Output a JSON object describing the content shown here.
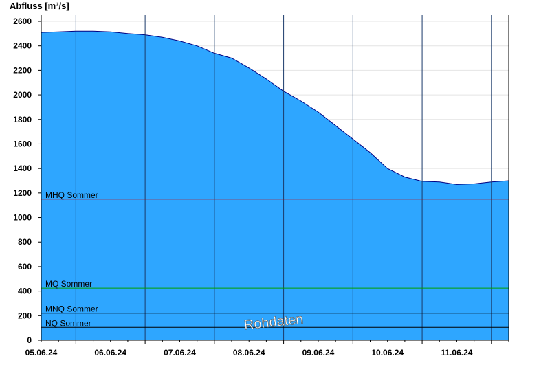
{
  "chart_data": {
    "type": "area",
    "ylabel": "Abfluss [m³/s]",
    "ylim": [
      0,
      2600
    ],
    "yticks": [
      0,
      200,
      400,
      600,
      800,
      1000,
      1200,
      1400,
      1600,
      1800,
      2000,
      2200,
      2400,
      2600
    ],
    "xlim": [
      "2024-06-04T12:00",
      "2024-06-11T06:00"
    ],
    "xtick_labels": [
      "05.06.24",
      "06.06.24",
      "07.06.24",
      "08.06.24",
      "09.06.24",
      "10.06.24",
      "11.06.24"
    ],
    "series": [
      {
        "color": "#2ea6ff",
        "x": [
          "2024-06-04T12:00",
          "2024-06-04T18:00",
          "2024-06-05T00:00",
          "2024-06-05T06:00",
          "2024-06-05T12:00",
          "2024-06-05T18:00",
          "2024-06-06T00:00",
          "2024-06-06T06:00",
          "2024-06-06T12:00",
          "2024-06-06T18:00",
          "2024-06-07T00:00",
          "2024-06-07T06:00",
          "2024-06-07T12:00",
          "2024-06-07T18:00",
          "2024-06-08T00:00",
          "2024-06-08T06:00",
          "2024-06-08T12:00",
          "2024-06-08T18:00",
          "2024-06-09T00:00",
          "2024-06-09T06:00",
          "2024-06-09T12:00",
          "2024-06-09T18:00",
          "2024-06-10T00:00",
          "2024-06-10T06:00",
          "2024-06-10T12:00",
          "2024-06-10T18:00",
          "2024-06-11T00:00",
          "2024-06-11T06:00"
        ],
        "values": [
          2510,
          2515,
          2520,
          2520,
          2515,
          2500,
          2490,
          2470,
          2440,
          2400,
          2340,
          2300,
          2220,
          2130,
          2030,
          1950,
          1860,
          1750,
          1640,
          1530,
          1400,
          1330,
          1295,
          1290,
          1270,
          1275,
          1290,
          1300
        ]
      }
    ],
    "reference_lines": [
      {
        "label": "MHQ Sommer",
        "value": 1150,
        "color": "#d00000"
      },
      {
        "label": "MQ Sommer",
        "value": 425,
        "color": "#00a000"
      },
      {
        "label": "MNQ Sommer",
        "value": 220,
        "color": "#000000"
      },
      {
        "label": "NQ Sommer",
        "value": 105,
        "color": "#000000"
      }
    ],
    "grid": true,
    "watermark": "Rohdaten"
  }
}
